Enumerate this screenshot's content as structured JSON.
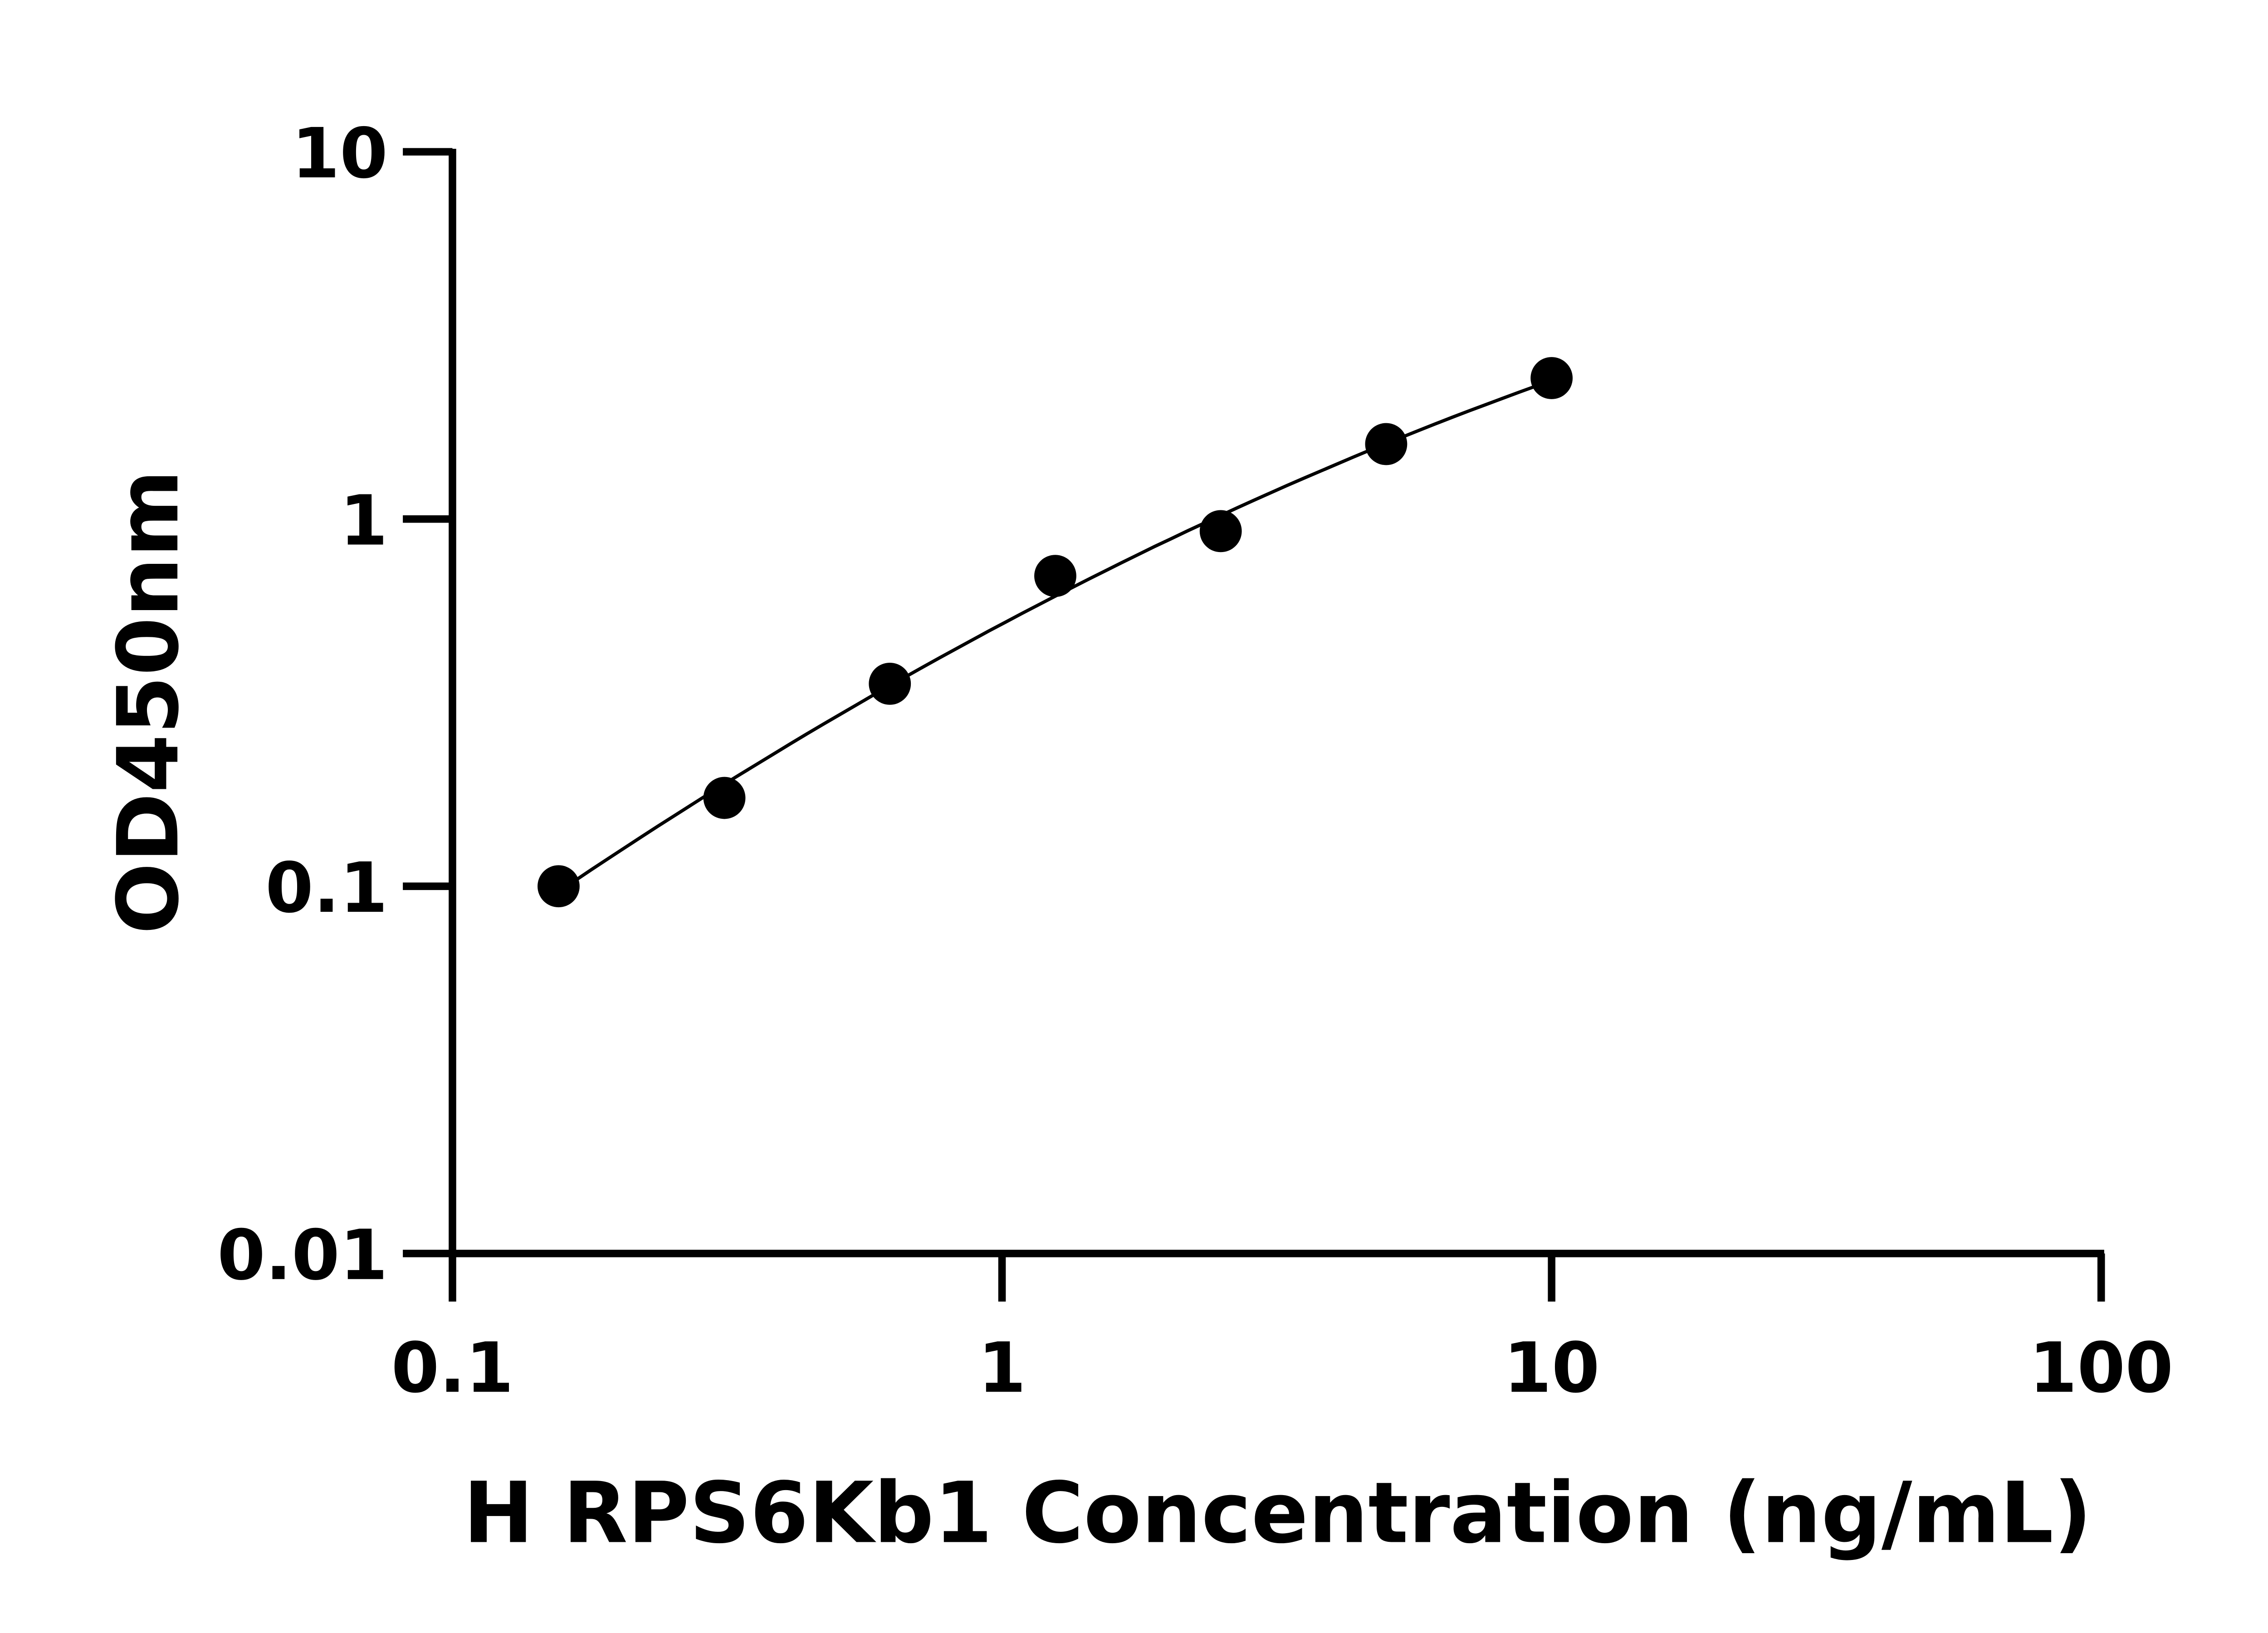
{
  "chart_data": {
    "type": "scatter",
    "title": "",
    "xlabel": "H RPS6Kb1 Concentration (ng/mL)",
    "ylabel": "OD450nm",
    "x_scale": "log",
    "y_scale": "log",
    "xlim": [
      0.1,
      100
    ],
    "ylim": [
      0.01,
      10
    ],
    "x_ticks": [
      "0.1",
      "1",
      "10",
      "100"
    ],
    "y_ticks": [
      "0.01",
      "0.1",
      "1",
      "10"
    ],
    "grid": false,
    "fit_line": true,
    "marker_color": "#000000",
    "x": [
      0.156,
      0.3125,
      0.625,
      1.25,
      2.5,
      5,
      10
    ],
    "y": [
      0.1,
      0.174,
      0.356,
      0.7,
      0.927,
      1.6,
      2.42
    ]
  }
}
